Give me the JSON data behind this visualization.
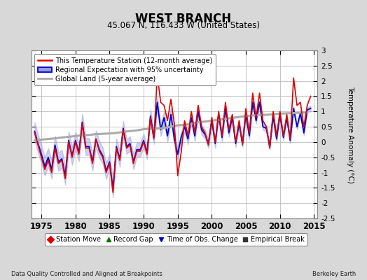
{
  "title": "WEST BRANCH",
  "subtitle": "45.067 N, 116.433 W (United States)",
  "ylabel": "Temperature Anomaly (°C)",
  "footer_left": "Data Quality Controlled and Aligned at Breakpoints",
  "footer_right": "Berkeley Earth",
  "xlim": [
    1973.5,
    2015.5
  ],
  "ylim": [
    -2.5,
    3.0
  ],
  "yticks": [
    -2.5,
    -2,
    -1.5,
    -1,
    -0.5,
    0,
    0.5,
    1,
    1.5,
    2,
    2.5,
    3
  ],
  "xticks": [
    1975,
    1980,
    1985,
    1990,
    1995,
    2000,
    2005,
    2010,
    2015
  ],
  "bg_color": "#d8d8d8",
  "plot_bg_color": "#ffffff",
  "grid_color": "#bbbbbb",
  "red_line_color": "#dd0000",
  "blue_line_color": "#0000cc",
  "blue_fill_color": "#9999dd",
  "gray_line_color": "#aaaaaa",
  "legend_items": [
    {
      "label": "This Temperature Station (12-month average)",
      "color": "#dd0000",
      "lw": 1.5
    },
    {
      "label": "Regional Expectation with 95% uncertainty",
      "color": "#0000cc",
      "lw": 1.5
    },
    {
      "label": "Global Land (5-year average)",
      "color": "#aaaaaa",
      "lw": 2.0
    }
  ],
  "bottom_legend_items": [
    {
      "label": "Station Move",
      "marker": "D",
      "color": "#dd0000"
    },
    {
      "label": "Record Gap",
      "marker": "^",
      "color": "#007700"
    },
    {
      "label": "Time of Obs. Change",
      "marker": "v",
      "color": "#0000cc"
    },
    {
      "label": "Empirical Break",
      "marker": "s",
      "color": "#333333"
    }
  ],
  "station_years": [
    1974.0,
    1974.5,
    1975.0,
    1975.5,
    1976.0,
    1976.5,
    1977.0,
    1977.5,
    1978.0,
    1978.5,
    1979.0,
    1979.5,
    1980.0,
    1980.5,
    1981.0,
    1981.5,
    1982.0,
    1982.5,
    1983.0,
    1983.5,
    1984.0,
    1984.5,
    1985.0,
    1985.5,
    1986.0,
    1986.5,
    1987.0,
    1987.5,
    1988.0,
    1988.5,
    1989.0,
    1989.5,
    1990.0,
    1990.5,
    1991.0,
    1991.5,
    1992.0,
    1992.5,
    1993.0,
    1993.5,
    1994.0,
    1994.5,
    1995.0,
    1995.5,
    1996.0,
    1996.5,
    1997.0,
    1997.5,
    1998.0,
    1998.5,
    1999.0,
    1999.5,
    2000.0,
    2000.5,
    2001.0,
    2001.5,
    2002.0,
    2002.5,
    2003.0,
    2003.5,
    2004.0,
    2004.5,
    2005.0,
    2005.5,
    2006.0,
    2006.5,
    2007.0,
    2007.5,
    2008.0,
    2008.5,
    2009.0,
    2009.5,
    2010.0,
    2010.5,
    2011.0,
    2011.5,
    2012.0,
    2012.5,
    2013.0,
    2013.5,
    2014.0,
    2014.5
  ],
  "station_vals": [
    0.3,
    -0.1,
    -0.5,
    -0.9,
    -0.6,
    -1.0,
    -0.2,
    -0.7,
    -0.6,
    -1.2,
    0.0,
    -0.5,
    0.0,
    -0.4,
    0.6,
    -0.2,
    -0.2,
    -0.7,
    0.1,
    -0.3,
    -0.5,
    -1.0,
    -0.7,
    -1.65,
    -0.2,
    -0.6,
    0.4,
    -0.2,
    -0.1,
    -0.7,
    -0.3,
    -0.3,
    0.0,
    -0.4,
    0.8,
    0.1,
    2.2,
    1.3,
    1.2,
    0.7,
    1.4,
    0.6,
    -1.1,
    -0.35,
    0.7,
    0.2,
    1.0,
    0.3,
    1.2,
    0.5,
    0.3,
    -0.1,
    0.8,
    0.0,
    1.0,
    0.2,
    1.3,
    0.4,
    0.9,
    0.0,
    0.7,
    -0.1,
    1.1,
    0.3,
    1.6,
    0.8,
    1.6,
    0.7,
    0.5,
    -0.2,
    1.0,
    0.2,
    1.0,
    0.2,
    0.9,
    0.1,
    2.1,
    1.2,
    1.3,
    0.5,
    1.2,
    1.5
  ],
  "regional_years": [
    1974.0,
    1974.5,
    1975.0,
    1975.5,
    1976.0,
    1976.5,
    1977.0,
    1977.5,
    1978.0,
    1978.5,
    1979.0,
    1979.5,
    1980.0,
    1980.5,
    1981.0,
    1981.5,
    1982.0,
    1982.5,
    1983.0,
    1983.5,
    1984.0,
    1984.5,
    1985.0,
    1985.5,
    1986.0,
    1986.5,
    1987.0,
    1987.5,
    1988.0,
    1988.5,
    1989.0,
    1989.5,
    1990.0,
    1990.5,
    1991.0,
    1991.5,
    1992.0,
    1992.5,
    1993.0,
    1993.5,
    1994.0,
    1994.5,
    1995.0,
    1995.5,
    1996.0,
    1996.5,
    1997.0,
    1997.5,
    1998.0,
    1998.5,
    1999.0,
    1999.5,
    2000.0,
    2000.5,
    2001.0,
    2001.5,
    2002.0,
    2002.5,
    2003.0,
    2003.5,
    2004.0,
    2004.5,
    2005.0,
    2005.5,
    2006.0,
    2006.5,
    2007.0,
    2007.5,
    2008.0,
    2008.5,
    2009.0,
    2009.5,
    2010.0,
    2010.5,
    2011.0,
    2011.5,
    2012.0,
    2012.5,
    2013.0,
    2013.5,
    2014.0,
    2014.5
  ],
  "regional_vals": [
    0.35,
    -0.05,
    -0.4,
    -0.8,
    -0.5,
    -0.9,
    -0.1,
    -0.65,
    -0.55,
    -1.1,
    0.05,
    -0.45,
    0.05,
    -0.35,
    0.65,
    -0.15,
    -0.15,
    -0.65,
    0.1,
    -0.25,
    -0.45,
    -0.95,
    -0.65,
    -1.55,
    -0.15,
    -0.55,
    0.45,
    -0.15,
    -0.05,
    -0.65,
    -0.25,
    -0.25,
    0.05,
    -0.35,
    0.85,
    0.15,
    1.3,
    0.4,
    0.8,
    0.2,
    0.9,
    0.1,
    -0.4,
    0.15,
    0.5,
    0.1,
    0.8,
    0.2,
    1.0,
    0.4,
    0.25,
    -0.05,
    0.7,
    -0.05,
    0.9,
    0.15,
    1.1,
    0.3,
    0.8,
    -0.05,
    0.6,
    -0.05,
    0.9,
    0.2,
    1.3,
    0.7,
    1.3,
    0.5,
    0.45,
    -0.15,
    0.85,
    0.1,
    0.9,
    0.15,
    0.8,
    0.05,
    1.1,
    0.5,
    0.95,
    0.3,
    1.05,
    1.1
  ],
  "regional_unc": [
    0.3,
    0.3,
    0.3,
    0.3,
    0.3,
    0.3,
    0.3,
    0.3,
    0.3,
    0.3,
    0.3,
    0.3,
    0.28,
    0.28,
    0.28,
    0.28,
    0.28,
    0.28,
    0.28,
    0.28,
    0.26,
    0.26,
    0.26,
    0.26,
    0.26,
    0.26,
    0.24,
    0.24,
    0.24,
    0.24,
    0.24,
    0.24,
    0.22,
    0.22,
    0.22,
    0.22,
    0.2,
    0.2,
    0.2,
    0.2,
    0.2,
    0.2,
    0.18,
    0.18,
    0.18,
    0.18,
    0.18,
    0.18,
    0.16,
    0.16,
    0.15,
    0.15,
    0.15,
    0.15,
    0.14,
    0.14,
    0.13,
    0.13,
    0.12,
    0.12,
    0.12,
    0.12,
    0.11,
    0.11,
    0.11,
    0.11,
    0.1,
    0.1,
    0.1,
    0.1,
    0.1,
    0.1,
    0.1,
    0.1,
    0.1,
    0.1,
    0.09,
    0.09,
    0.09,
    0.09,
    0.09,
    0.09
  ],
  "global_years": [
    1974.0,
    1975.0,
    1976.0,
    1977.0,
    1978.0,
    1979.0,
    1980.0,
    1981.0,
    1982.0,
    1983.0,
    1984.0,
    1985.0,
    1986.0,
    1987.0,
    1988.0,
    1989.0,
    1990.0,
    1991.0,
    1992.0,
    1993.0,
    1994.0,
    1995.0,
    1996.0,
    1997.0,
    1998.0,
    1999.0,
    2000.0,
    2001.0,
    2002.0,
    2003.0,
    2004.0,
    2005.0,
    2006.0,
    2007.0,
    2008.0,
    2009.0,
    2010.0,
    2011.0,
    2012.0,
    2013.0,
    2014.0
  ],
  "global_vals": [
    0.05,
    0.08,
    0.1,
    0.12,
    0.15,
    0.17,
    0.2,
    0.22,
    0.23,
    0.26,
    0.27,
    0.28,
    0.3,
    0.33,
    0.36,
    0.38,
    0.42,
    0.44,
    0.44,
    0.46,
    0.5,
    0.55,
    0.56,
    0.6,
    0.65,
    0.67,
    0.7,
    0.73,
    0.76,
    0.79,
    0.82,
    0.85,
    0.87,
    0.89,
    0.89,
    0.91,
    0.93,
    0.94,
    0.95,
    0.96,
    0.97
  ]
}
